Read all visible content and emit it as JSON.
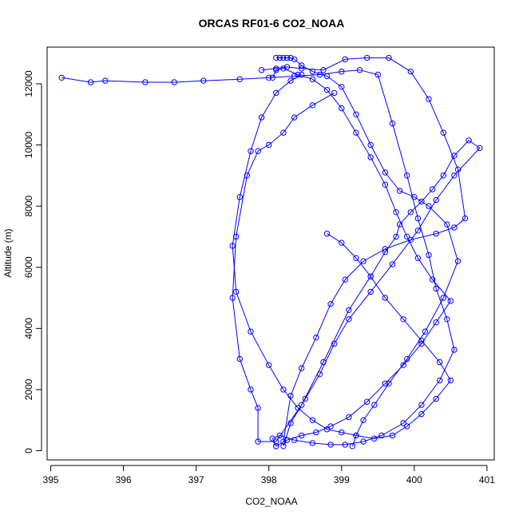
{
  "chart_data": {
    "type": "line",
    "title": "ORCAS RF01-6 CO2_NOAA",
    "xlabel": "CO2_NOAA",
    "ylabel": "Altitude (m)",
    "xlim": [
      394.95,
      401.1
    ],
    "ylim": [
      -300,
      13200
    ],
    "xticks": [
      395,
      396,
      397,
      398,
      399,
      400,
      401
    ],
    "yticks": [
      0,
      2000,
      4000,
      6000,
      8000,
      10000,
      12000
    ],
    "grid": false,
    "markers": "open-circle",
    "series_color": "#0000ff",
    "series": [
      {
        "x": [
          398.9,
          398.6,
          398.35,
          398.2,
          398.0,
          397.85,
          397.7,
          397.55,
          397.5,
          397.6,
          397.75,
          397.85,
          397.85,
          398.1,
          398.45,
          398.75,
          399.1,
          399.4,
          399.6,
          399.75,
          399.8,
          399.95,
          400.1,
          400.25,
          400.4,
          400.55,
          400.75,
          400.9,
          400.55,
          400.3,
          400.05,
          399.7,
          399.4,
          399.1,
          398.9,
          398.7,
          398.5,
          398.3,
          398.2
        ],
        "y": [
          11700,
          11300,
          10900,
          10400,
          10000,
          9800,
          9000,
          7000,
          5000,
          3000,
          2000,
          1400,
          300,
          300,
          1500,
          2900,
          4600,
          5700,
          6500,
          7000,
          7400,
          7800,
          8150,
          8550,
          9000,
          9650,
          10150,
          9900,
          9000,
          8200,
          7200,
          6100,
          5200,
          4300,
          3500,
          2500,
          1700,
          900,
          150
        ]
      },
      {
        "x": [
          395.15,
          395.55,
          395.75,
          396.3,
          396.7,
          397.1,
          397.6,
          398.0,
          398.35,
          398.7,
          399.0,
          399.25,
          399.5,
          399.7,
          399.9,
          400.05,
          400.2,
          400.3,
          400.45,
          400.55,
          400.35,
          400.1,
          399.85,
          399.55,
          399.3,
          399.05,
          398.85,
          398.6,
          398.35,
          398.15,
          398.05,
          398.1
        ],
        "y": [
          12200,
          12050,
          12100,
          12050,
          12050,
          12100,
          12150,
          12200,
          12250,
          12300,
          12400,
          12450,
          12300,
          10700,
          9000,
          7600,
          6400,
          5300,
          4300,
          3300,
          2300,
          1500,
          900,
          500,
          300,
          200,
          200,
          250,
          350,
          500,
          400,
          150
        ]
      },
      {
        "x": [
          397.9,
          398.1,
          398.25,
          398.45,
          398.75,
          399.05,
          399.35,
          399.65,
          399.95,
          400.2,
          400.4,
          400.6,
          400.7,
          400.55,
          400.3,
          399.95,
          399.6,
          399.3,
          399.05,
          398.85,
          398.65,
          398.45,
          398.3,
          398.2
        ],
        "y": [
          12450,
          12500,
          12550,
          12500,
          12450,
          12800,
          12850,
          12850,
          12400,
          11500,
          10400,
          9200,
          7600,
          7300,
          7100,
          6900,
          6600,
          6200,
          5600,
          4800,
          3700,
          2700,
          1800,
          300
        ]
      },
      {
        "x": [
          398.1,
          398.15,
          398.2,
          398.25,
          398.3,
          398.35,
          398.45,
          398.6,
          398.8,
          399.0,
          399.2,
          399.4,
          399.6,
          399.8,
          400.0,
          400.2,
          400.45,
          400.6,
          400.4,
          400.15,
          399.9,
          399.65,
          399.45,
          399.3,
          399.2,
          399.15
        ],
        "y": [
          12850,
          12850,
          12850,
          12850,
          12850,
          12800,
          12600,
          12400,
          12250,
          11900,
          11000,
          10000,
          9100,
          8500,
          8300,
          8000,
          7400,
          6200,
          5000,
          3900,
          3000,
          2200,
          1500,
          1000,
          500,
          150
        ]
      },
      {
        "x": [
          398.05,
          398.1,
          398.2,
          398.4,
          398.6,
          398.8,
          399.0,
          399.2,
          399.4,
          399.6,
          399.75,
          399.9,
          400.05,
          400.25,
          400.5,
          400.3,
          400.1,
          399.85,
          399.6,
          399.35,
          399.1,
          398.85,
          398.65,
          398.45,
          398.25,
          398.1
        ],
        "y": [
          12200,
          12450,
          12500,
          12300,
          12150,
          11800,
          11200,
          10400,
          9600,
          8700,
          7800,
          7000,
          6300,
          5600,
          4900,
          4200,
          3500,
          2800,
          2200,
          1600,
          1100,
          800,
          600,
          500,
          350,
          150
        ]
      },
      {
        "x": [
          398.45,
          398.3,
          398.1,
          397.9,
          397.75,
          397.6,
          397.5,
          397.55,
          397.75,
          398.0,
          398.2,
          398.4,
          398.6,
          398.8,
          399.0,
          399.2,
          399.45,
          399.7,
          399.9,
          400.1,
          400.3,
          400.5,
          400.35,
          400.1,
          399.85,
          399.6,
          399.4,
          399.2,
          399.0,
          398.8
        ],
        "y": [
          12300,
          12100,
          11700,
          10900,
          9800,
          8300,
          6700,
          5200,
          3900,
          2800,
          2000,
          1400,
          1000,
          700,
          600,
          500,
          400,
          500,
          800,
          1200,
          1700,
          2300,
          2900,
          3600,
          4300,
          5000,
          5700,
          6300,
          6800,
          7100
        ]
      }
    ]
  }
}
